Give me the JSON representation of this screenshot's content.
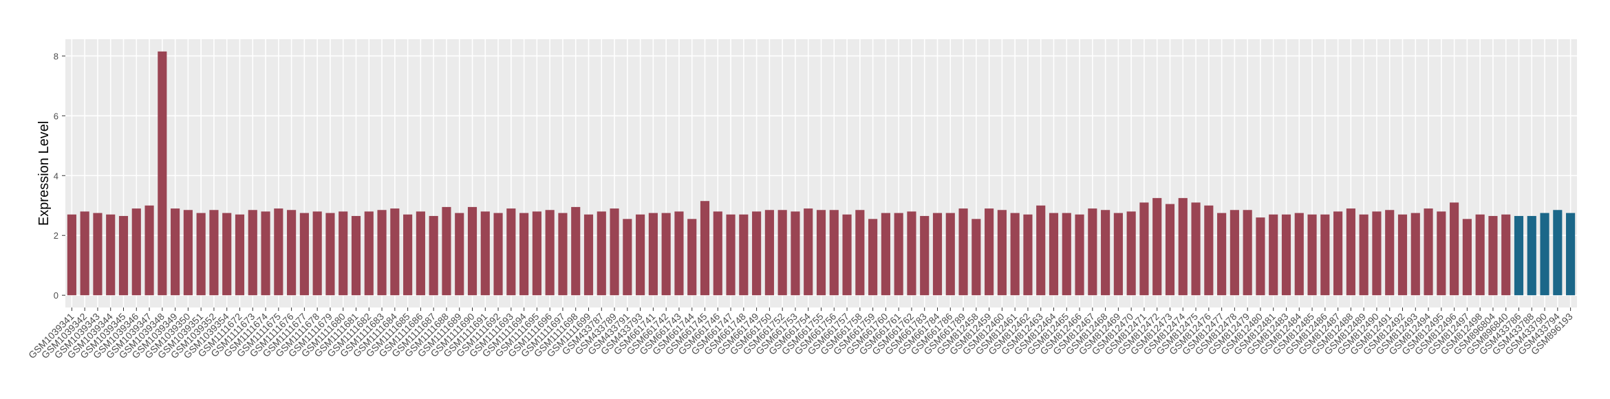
{
  "chart_data": {
    "type": "bar",
    "y_label": "Expression Level",
    "categories": [
      "GSM1039341",
      "GSM1039342",
      "GSM1039343",
      "GSM1039344",
      "GSM1039345",
      "GSM1039346",
      "GSM1039347",
      "GSM1039348",
      "GSM1039349",
      "GSM1039350",
      "GSM1039351",
      "GSM1039352",
      "GSM1039354",
      "GSM1111672",
      "GSM1111673",
      "GSM1111674",
      "GSM1111675",
      "GSM1111676",
      "GSM1111677",
      "GSM1111678",
      "GSM1111679",
      "GSM1111680",
      "GSM1111681",
      "GSM1111682",
      "GSM1111683",
      "GSM1111684",
      "GSM1111685",
      "GSM1111686",
      "GSM1111687",
      "GSM1111688",
      "GSM1111689",
      "GSM1111690",
      "GSM1111691",
      "GSM1111692",
      "GSM1111693",
      "GSM1111694",
      "GSM1111695",
      "GSM1111696",
      "GSM1111697",
      "GSM1111698",
      "GSM1111699",
      "GSM433787",
      "GSM433789",
      "GSM433791",
      "GSM433793",
      "GSM661741",
      "GSM661742",
      "GSM661743",
      "GSM661744",
      "GSM661745",
      "GSM661746",
      "GSM661747",
      "GSM661748",
      "GSM661749",
      "GSM661750",
      "GSM661752",
      "GSM661753",
      "GSM661754",
      "GSM661755",
      "GSM661756",
      "GSM661757",
      "GSM661758",
      "GSM661759",
      "GSM661760",
      "GSM661761",
      "GSM661762",
      "GSM661783",
      "GSM661784",
      "GSM661786",
      "GSM661789",
      "GSM812458",
      "GSM812459",
      "GSM812460",
      "GSM812461",
      "GSM812462",
      "GSM812463",
      "GSM812464",
      "GSM812465",
      "GSM812466",
      "GSM812467",
      "GSM812468",
      "GSM812469",
      "GSM812470",
      "GSM812471",
      "GSM812472",
      "GSM812473",
      "GSM812474",
      "GSM812475",
      "GSM812476",
      "GSM812477",
      "GSM812478",
      "GSM812479",
      "GSM812480",
      "GSM812481",
      "GSM812483",
      "GSM812484",
      "GSM812485",
      "GSM812486",
      "GSM812487",
      "GSM812488",
      "GSM812489",
      "GSM812490",
      "GSM812491",
      "GSM812492",
      "GSM812493",
      "GSM812494",
      "GSM812495",
      "GSM812496",
      "GSM812497",
      "GSM812498",
      "GSM896804",
      "GSM896840",
      "GSM433786",
      "GSM433788",
      "GSM433790",
      "GSM433794",
      "GSM896193"
    ],
    "values": [
      2.7,
      2.8,
      2.75,
      2.7,
      2.65,
      2.9,
      3.0,
      8.15,
      2.9,
      2.85,
      2.75,
      2.85,
      2.75,
      2.7,
      2.85,
      2.8,
      2.9,
      2.85,
      2.75,
      2.8,
      2.75,
      2.8,
      2.65,
      2.8,
      2.85,
      2.9,
      2.7,
      2.8,
      2.65,
      2.95,
      2.75,
      2.95,
      2.8,
      2.75,
      2.9,
      2.75,
      2.8,
      2.85,
      2.75,
      2.95,
      2.7,
      2.8,
      2.9,
      2.55,
      2.7,
      2.75,
      2.75,
      2.8,
      2.55,
      3.15,
      2.8,
      2.7,
      2.7,
      2.8,
      2.85,
      2.85,
      2.8,
      2.9,
      2.85,
      2.85,
      2.7,
      2.85,
      2.55,
      2.75,
      2.75,
      2.8,
      2.65,
      2.75,
      2.75,
      2.9,
      2.55,
      2.9,
      2.85,
      2.75,
      2.7,
      3.0,
      2.75,
      2.75,
      2.7,
      2.9,
      2.85,
      2.75,
      2.8,
      3.1,
      3.25,
      3.05,
      3.25,
      3.1,
      3.0,
      2.75,
      2.85,
      2.85,
      2.6,
      2.7,
      2.7,
      2.75,
      2.7,
      2.7,
      2.8,
      2.9,
      2.7,
      2.8,
      2.85,
      2.7,
      2.75,
      2.9,
      2.8,
      3.1,
      2.55,
      2.7,
      2.65,
      2.7,
      2.65,
      2.65,
      2.75,
      2.85,
      2.75
    ],
    "colors": {
      "default": "#9a4453",
      "highlight": "#1b6789"
    },
    "highlight_categories": [
      "GSM433786",
      "GSM433788",
      "GSM433790",
      "GSM433794",
      "GSM896193"
    ],
    "ylim": [
      -0.41,
      8.56
    ],
    "yticks": [
      0,
      2,
      4,
      6,
      8
    ],
    "grid": true
  }
}
